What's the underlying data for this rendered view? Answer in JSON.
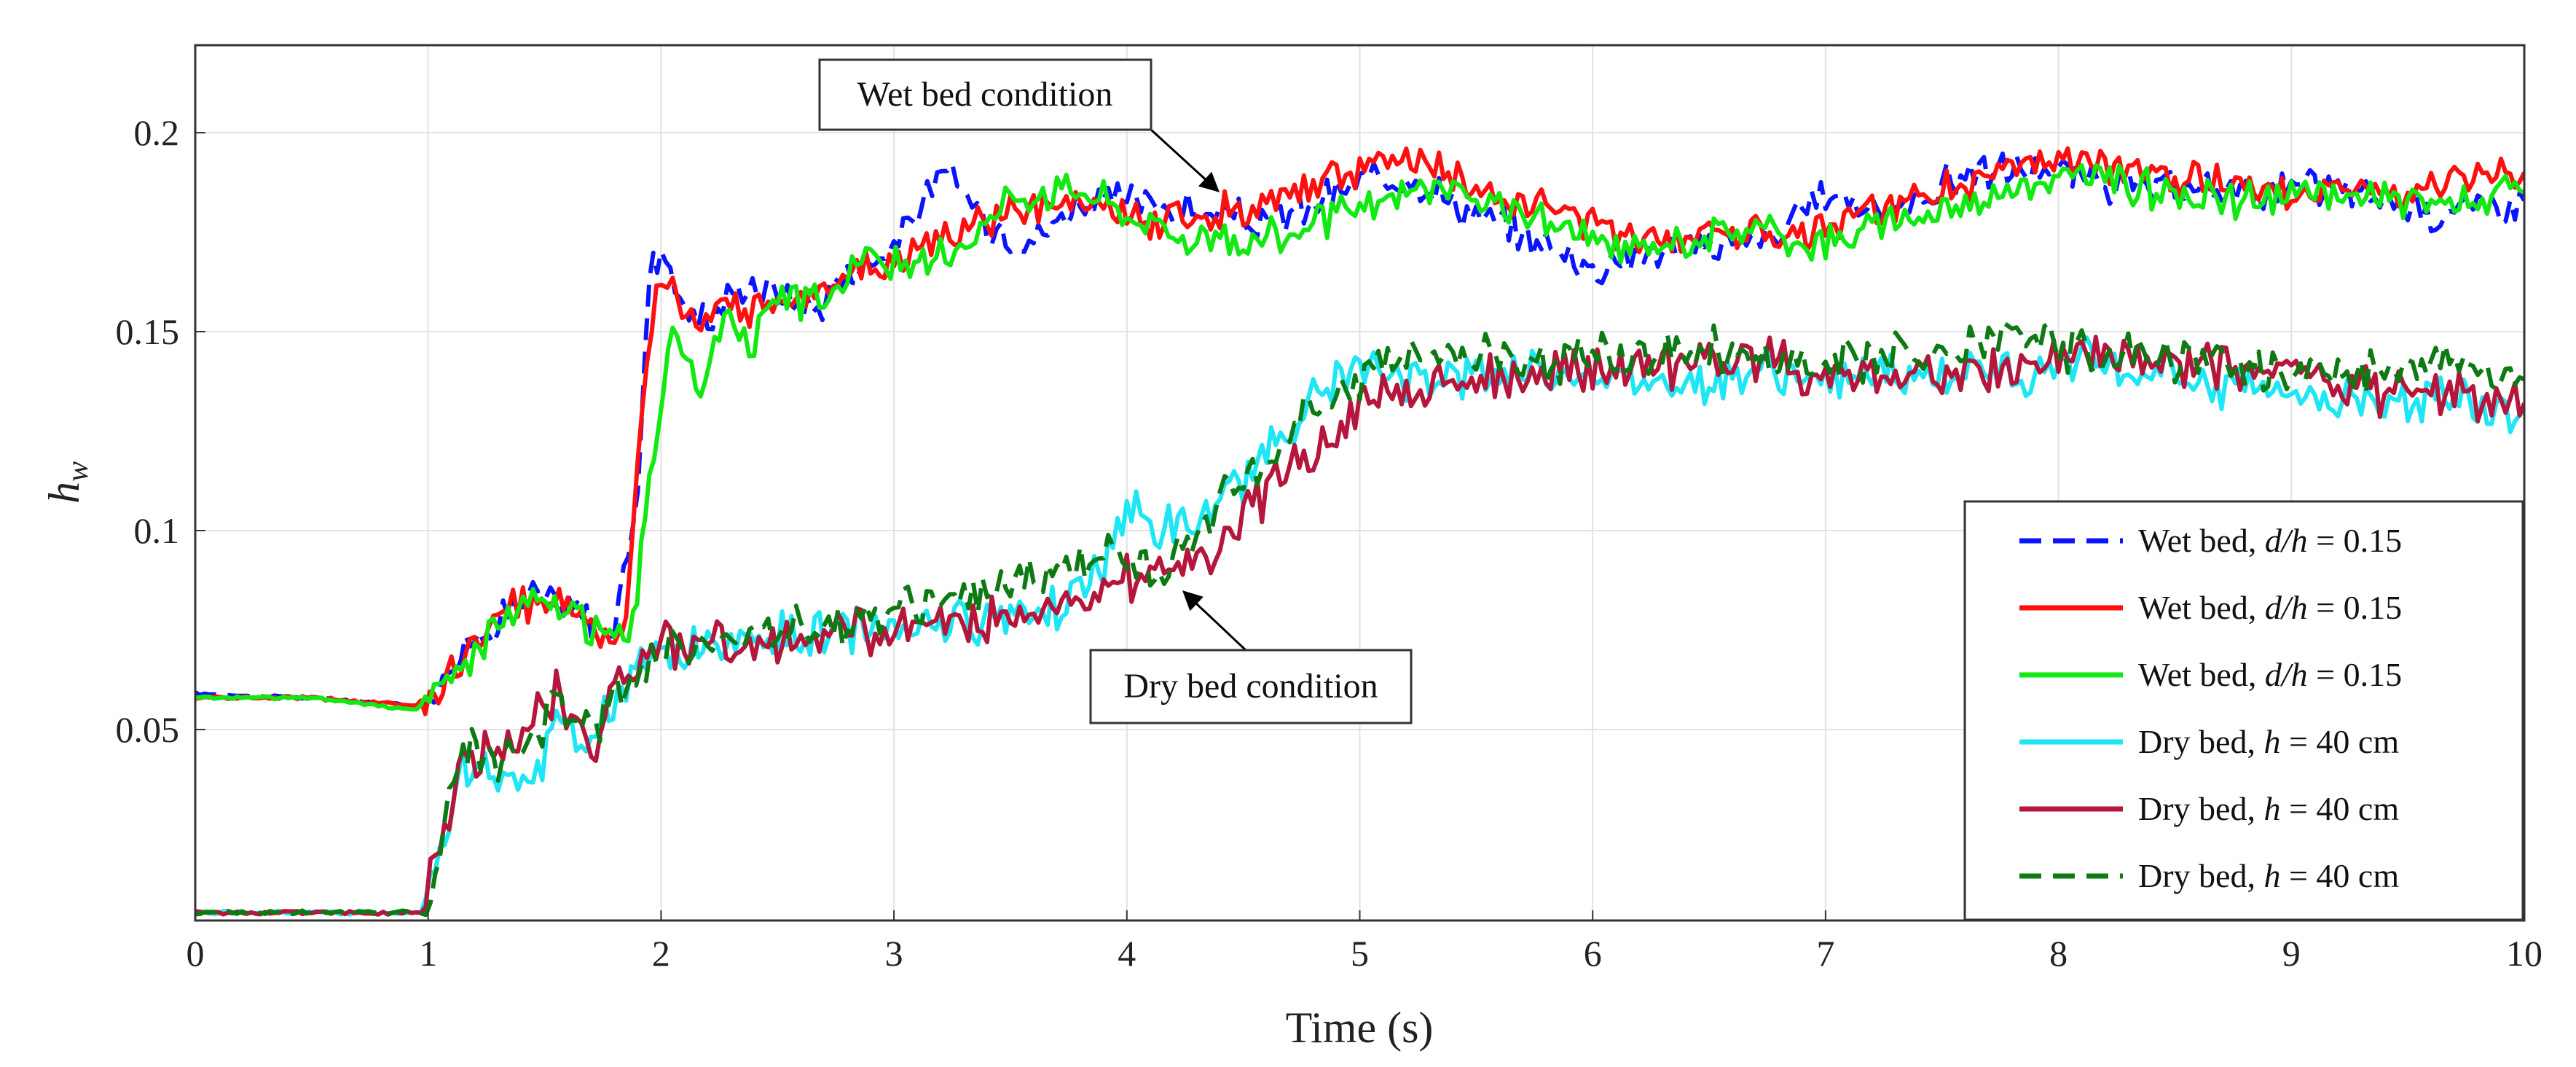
{
  "chart_data": {
    "type": "line",
    "title": "",
    "xlabel": "Time (s)",
    "ylabel": {
      "base": "h",
      "sub": "w"
    },
    "xlim": [
      0,
      10
    ],
    "ylim": [
      0.002,
      0.222
    ],
    "xticks": [
      0,
      1,
      2,
      3,
      4,
      5,
      6,
      7,
      8,
      9,
      10
    ],
    "xtick_labels": [
      "0",
      "1",
      "2",
      "3",
      "4",
      "5",
      "6",
      "7",
      "8",
      "9",
      "10"
    ],
    "yticks": [
      0.05,
      0.1,
      0.15,
      0.2
    ],
    "ytick_labels": [
      "0.05",
      "0.1",
      "0.15",
      "0.2"
    ],
    "grid": true,
    "legend_position": "bottom-right",
    "annotations": [
      {
        "text": "Wet bed condition",
        "arrow_to": [
          4.4,
          0.182
        ]
      },
      {
        "text": "Dry bed condition",
        "arrow_to": [
          4.05,
          0.089
        ]
      }
    ],
    "series": [
      {
        "name": "Wet bed",
        "legend": {
          "prefix": "Wet bed, ",
          "var": "d/h",
          "suffix": " = 0.15"
        },
        "color": "#0a14ff",
        "dash": true,
        "x": [
          0,
          0.5,
          0.95,
          1.1,
          1.3,
          1.45,
          1.6,
          1.8,
          1.9,
          1.95,
          2.0,
          2.1,
          2.2,
          2.35,
          2.5,
          2.65,
          2.8,
          3.0,
          3.1,
          3.25,
          3.4,
          3.6,
          3.8,
          4.0,
          4.3,
          4.6,
          5.0,
          5.2,
          5.5,
          5.8,
          6.0,
          6.2,
          6.5,
          6.8,
          7.0,
          7.3,
          7.6,
          7.9,
          8.2,
          8.5,
          8.8,
          9.2,
          9.6,
          10.0
        ],
        "y": [
          0.059,
          0.058,
          0.056,
          0.066,
          0.078,
          0.084,
          0.081,
          0.074,
          0.11,
          0.165,
          0.172,
          0.156,
          0.152,
          0.162,
          0.16,
          0.155,
          0.165,
          0.172,
          0.181,
          0.19,
          0.177,
          0.173,
          0.183,
          0.183,
          0.18,
          0.177,
          0.187,
          0.19,
          0.179,
          0.172,
          0.166,
          0.17,
          0.172,
          0.174,
          0.185,
          0.18,
          0.19,
          0.191,
          0.187,
          0.185,
          0.186,
          0.186,
          0.18,
          0.183
        ]
      },
      {
        "name": "Wet bed",
        "legend": {
          "prefix": "Wet bed, ",
          "var": "d/h",
          "suffix": " = 0.15"
        },
        "color": "#ff1010",
        "dash": false,
        "x": [
          0,
          0.5,
          0.95,
          1.1,
          1.3,
          1.45,
          1.6,
          1.8,
          1.85,
          1.9,
          1.98,
          2.05,
          2.15,
          2.3,
          2.5,
          2.7,
          3.0,
          3.1,
          3.3,
          3.5,
          3.8,
          4.1,
          4.4,
          4.7,
          5.0,
          5.3,
          5.5,
          5.8,
          6.0,
          6.3,
          6.6,
          6.9,
          7.2,
          7.5,
          7.8,
          8.0,
          8.3,
          8.6,
          9.0,
          9.4,
          9.8,
          10.0
        ],
        "y": [
          0.058,
          0.058,
          0.056,
          0.064,
          0.078,
          0.083,
          0.082,
          0.071,
          0.078,
          0.12,
          0.163,
          0.163,
          0.15,
          0.155,
          0.158,
          0.162,
          0.168,
          0.172,
          0.175,
          0.18,
          0.182,
          0.178,
          0.18,
          0.185,
          0.191,
          0.193,
          0.185,
          0.182,
          0.176,
          0.174,
          0.176,
          0.175,
          0.18,
          0.186,
          0.19,
          0.193,
          0.19,
          0.188,
          0.186,
          0.185,
          0.187,
          0.19
        ]
      },
      {
        "name": "Wet bed",
        "legend": {
          "prefix": "Wet bed, ",
          "var": "d/h",
          "suffix": " = 0.15"
        },
        "color": "#12e812",
        "dash": false,
        "x": [
          0,
          0.5,
          0.95,
          1.1,
          1.3,
          1.45,
          1.6,
          1.8,
          1.88,
          1.95,
          2.05,
          2.15,
          2.25,
          2.4,
          2.5,
          2.7,
          2.9,
          3.05,
          3.2,
          3.35,
          3.5,
          3.8,
          4.0,
          4.2,
          4.5,
          4.8,
          5.0,
          5.3,
          5.6,
          5.9,
          6.1,
          6.4,
          6.7,
          7.0,
          7.3,
          7.6,
          7.9,
          8.2,
          8.5,
          8.8,
          9.2,
          9.6,
          10.0
        ],
        "y": [
          0.058,
          0.058,
          0.055,
          0.063,
          0.077,
          0.082,
          0.08,
          0.072,
          0.078,
          0.11,
          0.155,
          0.133,
          0.152,
          0.148,
          0.157,
          0.158,
          0.17,
          0.165,
          0.168,
          0.176,
          0.184,
          0.187,
          0.18,
          0.175,
          0.172,
          0.177,
          0.18,
          0.187,
          0.181,
          0.176,
          0.17,
          0.173,
          0.176,
          0.172,
          0.178,
          0.182,
          0.188,
          0.189,
          0.184,
          0.183,
          0.185,
          0.182,
          0.185
        ]
      },
      {
        "name": "Dry bed",
        "legend": {
          "prefix": "Dry bed, ",
          "var": "h",
          "suffix": " = 40 cm"
        },
        "color": "#1ee6f5",
        "dash": false,
        "x": [
          0,
          0.5,
          0.97,
          1.05,
          1.15,
          1.3,
          1.45,
          1.55,
          1.7,
          1.85,
          2.0,
          2.2,
          2.5,
          2.8,
          3.1,
          3.4,
          3.7,
          3.9,
          4.0,
          4.1,
          4.3,
          4.6,
          4.8,
          5.0,
          5.3,
          5.6,
          5.9,
          6.1,
          6.4,
          6.7,
          7.0,
          7.3,
          7.6,
          7.9,
          8.0,
          8.3,
          8.6,
          8.9,
          9.2,
          9.5,
          9.8,
          10.0
        ],
        "y": [
          0.004,
          0.004,
          0.004,
          0.02,
          0.04,
          0.04,
          0.035,
          0.055,
          0.045,
          0.062,
          0.068,
          0.072,
          0.073,
          0.075,
          0.077,
          0.078,
          0.082,
          0.09,
          0.108,
          0.1,
          0.1,
          0.12,
          0.133,
          0.14,
          0.138,
          0.14,
          0.14,
          0.138,
          0.138,
          0.14,
          0.138,
          0.138,
          0.14,
          0.14,
          0.143,
          0.14,
          0.138,
          0.136,
          0.133,
          0.134,
          0.132,
          0.13
        ]
      },
      {
        "name": "Dry bed",
        "legend": {
          "prefix": "Dry bed, ",
          "var": "h",
          "suffix": " = 40 cm"
        },
        "color": "#b5163c",
        "dash": false,
        "x": [
          0,
          0.5,
          0.97,
          1.05,
          1.15,
          1.3,
          1.45,
          1.55,
          1.7,
          1.8,
          2.0,
          2.2,
          2.5,
          2.8,
          3.1,
          3.4,
          3.7,
          4.0,
          4.2,
          4.4,
          4.6,
          4.8,
          5.0,
          5.3,
          5.6,
          5.9,
          6.1,
          6.4,
          6.7,
          7.0,
          7.3,
          7.6,
          7.9,
          8.2,
          8.5,
          8.8,
          9.1,
          9.4,
          9.7,
          10.0
        ],
        "y": [
          0.004,
          0.004,
          0.004,
          0.02,
          0.042,
          0.045,
          0.052,
          0.06,
          0.045,
          0.062,
          0.07,
          0.071,
          0.072,
          0.074,
          0.076,
          0.078,
          0.082,
          0.088,
          0.09,
          0.097,
          0.11,
          0.12,
          0.132,
          0.136,
          0.138,
          0.14,
          0.14,
          0.142,
          0.144,
          0.139,
          0.138,
          0.14,
          0.142,
          0.144,
          0.142,
          0.14,
          0.138,
          0.135,
          0.134,
          0.132
        ]
      },
      {
        "name": "Dry bed",
        "legend": {
          "prefix": "Dry bed, ",
          "var": "h",
          "suffix": " = 40 cm"
        },
        "color": "#0e7a14",
        "dash": true,
        "x": [
          0,
          0.5,
          0.97,
          1.05,
          1.15,
          1.3,
          1.45,
          1.55,
          1.7,
          1.85,
          2.0,
          2.2,
          2.5,
          2.8,
          3.0,
          3.2,
          3.5,
          3.7,
          3.9,
          4.1,
          4.3,
          4.6,
          4.8,
          5.0,
          5.3,
          5.6,
          5.9,
          6.1,
          6.4,
          6.7,
          7.0,
          7.3,
          7.6,
          7.9,
          8.2,
          8.5,
          8.8,
          9.1,
          9.4,
          9.7,
          10.0
        ],
        "y": [
          0.004,
          0.004,
          0.004,
          0.02,
          0.046,
          0.04,
          0.048,
          0.058,
          0.05,
          0.062,
          0.07,
          0.073,
          0.075,
          0.078,
          0.08,
          0.083,
          0.085,
          0.09,
          0.095,
          0.09,
          0.1,
          0.118,
          0.13,
          0.14,
          0.145,
          0.145,
          0.143,
          0.145,
          0.146,
          0.143,
          0.142,
          0.145,
          0.145,
          0.148,
          0.145,
          0.143,
          0.142,
          0.14,
          0.14,
          0.142,
          0.138
        ]
      }
    ]
  }
}
